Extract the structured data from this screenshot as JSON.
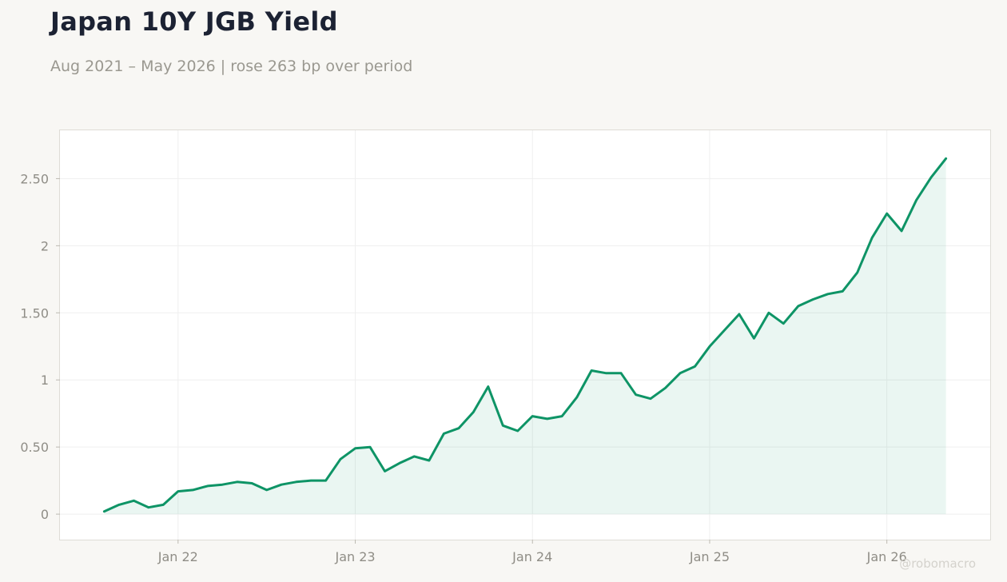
{
  "header": {
    "title": "Japan 10Y JGB Yield",
    "subtitle": "Aug 2021 – May 2026 | rose 263 bp over period"
  },
  "watermark": "@robomacro",
  "colors": {
    "background": "#f8f7f4",
    "plot_background": "#ffffff",
    "line": "#0e9466",
    "area": "#0e9466",
    "grid": "#efefef",
    "tick_text": "#8f8d86"
  },
  "chart_data": {
    "type": "area",
    "title": "Japan 10Y JGB Yield",
    "subtitle": "Aug 2021 – May 2026 | rose 263 bp over period",
    "xlabel": "",
    "ylabel": "",
    "grid": true,
    "x_tick_labels": [
      "Jan 22",
      "Jan 23",
      "Jan 24",
      "Jan 25",
      "Jan 26"
    ],
    "x_tick_dates": [
      "2022-01",
      "2023-01",
      "2024-01",
      "2025-01",
      "2026-01"
    ],
    "y_tick_labels": [
      "0",
      "0.50",
      "1",
      "1.50",
      "2",
      "2.50"
    ],
    "y_tick_values": [
      0,
      0.5,
      1,
      1.5,
      2,
      2.5
    ],
    "xlim": [
      "2021-05",
      "2026-08"
    ],
    "ylim": [
      -0.19,
      2.86
    ],
    "x": [
      "2021-08",
      "2021-09",
      "2021-10",
      "2021-11",
      "2021-12",
      "2022-01",
      "2022-02",
      "2022-03",
      "2022-04",
      "2022-05",
      "2022-06",
      "2022-07",
      "2022-08",
      "2022-09",
      "2022-10",
      "2022-11",
      "2022-12",
      "2023-01",
      "2023-02",
      "2023-03",
      "2023-04",
      "2023-05",
      "2023-06",
      "2023-07",
      "2023-08",
      "2023-09",
      "2023-10",
      "2023-11",
      "2023-12",
      "2024-01",
      "2024-02",
      "2024-03",
      "2024-04",
      "2024-05",
      "2024-06",
      "2024-07",
      "2024-08",
      "2024-09",
      "2024-10",
      "2024-11",
      "2024-12",
      "2025-01",
      "2025-02",
      "2025-03",
      "2025-04",
      "2025-05",
      "2025-06",
      "2025-07",
      "2025-08",
      "2025-09",
      "2025-10",
      "2025-11",
      "2025-12",
      "2026-01",
      "2026-02",
      "2026-03",
      "2026-04",
      "2026-05"
    ],
    "series": [
      {
        "values": [
          0.02,
          0.07,
          0.1,
          0.05,
          0.07,
          0.17,
          0.18,
          0.21,
          0.22,
          0.24,
          0.23,
          0.18,
          0.22,
          0.24,
          0.25,
          0.25,
          0.41,
          0.49,
          0.5,
          0.32,
          0.38,
          0.43,
          0.4,
          0.6,
          0.64,
          0.76,
          0.95,
          0.66,
          0.62,
          0.73,
          0.71,
          0.73,
          0.87,
          1.07,
          1.05,
          1.05,
          0.89,
          0.86,
          0.94,
          1.05,
          1.1,
          1.25,
          1.37,
          1.49,
          1.31,
          1.5,
          1.42,
          1.55,
          1.6,
          1.64,
          1.66,
          1.8,
          2.06,
          2.24,
          2.11,
          2.34,
          2.51,
          2.65
        ]
      }
    ]
  }
}
